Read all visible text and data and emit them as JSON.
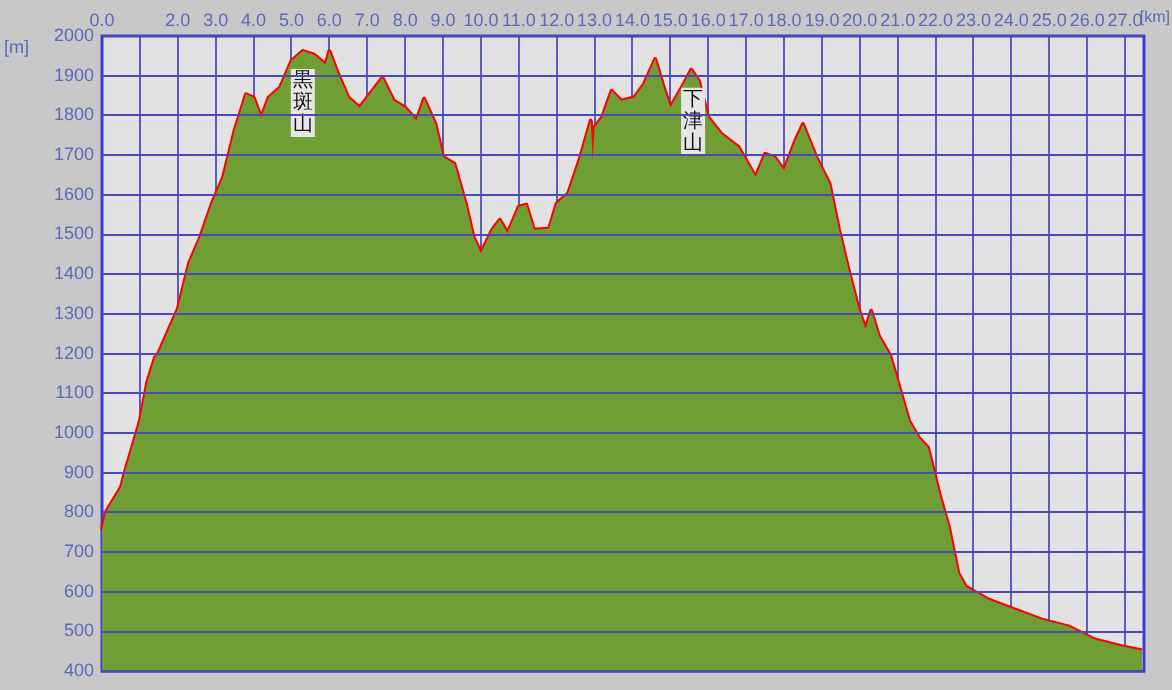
{
  "chart_data": {
    "type": "area",
    "xlabel": "[km]",
    "ylabel": "[m]",
    "xlim": [
      0,
      27.5
    ],
    "ylim": [
      400,
      2000
    ],
    "xticks": [
      {
        "value": 0,
        "label": "0.0"
      },
      {
        "value": 1,
        "label": null
      },
      {
        "value": 2,
        "label": "2.0"
      },
      {
        "value": 3,
        "label": "3.0"
      },
      {
        "value": 4,
        "label": "4.0"
      },
      {
        "value": 5,
        "label": "5.0"
      },
      {
        "value": 6,
        "label": "6.0"
      },
      {
        "value": 7,
        "label": "7.0"
      },
      {
        "value": 8,
        "label": "8.0"
      },
      {
        "value": 9,
        "label": "9.0"
      },
      {
        "value": 10,
        "label": "10.0"
      },
      {
        "value": 11,
        "label": "11.0"
      },
      {
        "value": 12,
        "label": "12.0"
      },
      {
        "value": 13,
        "label": "13.0"
      },
      {
        "value": 14,
        "label": "14.0"
      },
      {
        "value": 15,
        "label": "15.0"
      },
      {
        "value": 16,
        "label": "16.0"
      },
      {
        "value": 17,
        "label": "17.0"
      },
      {
        "value": 18,
        "label": "18.0"
      },
      {
        "value": 19,
        "label": "19.0"
      },
      {
        "value": 20,
        "label": "20.0"
      },
      {
        "value": 21,
        "label": "21.0"
      },
      {
        "value": 22,
        "label": "22.0"
      },
      {
        "value": 23,
        "label": "23.0"
      },
      {
        "value": 24,
        "label": "24.0"
      },
      {
        "value": 25,
        "label": "25.0"
      },
      {
        "value": 26,
        "label": "26.0"
      },
      {
        "value": 27,
        "label": "27.0"
      }
    ],
    "yticks": [
      400,
      500,
      600,
      700,
      800,
      900,
      1000,
      1100,
      1200,
      1300,
      1400,
      1500,
      1600,
      1700,
      1800,
      1900,
      2000
    ],
    "grid": true,
    "legend": false,
    "series": [
      {
        "color": "#6e9e34",
        "x": [
          0,
          0.1,
          0.5,
          0.6,
          1.0,
          1.2,
          1.4,
          1.5,
          2.0,
          2.3,
          2.6,
          2.9,
          3.2,
          3.5,
          3.8,
          4.0,
          4.2,
          4.4,
          4.7,
          5.0,
          5.3,
          5.6,
          5.9,
          6.0,
          6.2,
          6.5,
          6.8,
          7.0,
          7.4,
          7.7,
          8.0,
          8.3,
          8.5,
          8.8,
          9.0,
          9.3,
          9.6,
          9.8,
          10.0,
          10.3,
          10.5,
          10.7,
          11.0,
          11.2,
          11.4,
          11.8,
          12.0,
          12.3,
          12.6,
          12.9,
          12.95,
          13.0,
          13.2,
          13.45,
          13.7,
          14.05,
          14.3,
          14.6,
          14.8,
          15.0,
          15.3,
          15.55,
          15.75,
          16.0,
          16.35,
          16.8,
          17.05,
          17.25,
          17.5,
          17.75,
          18.0,
          18.3,
          18.5,
          18.85,
          19.2,
          19.45,
          19.7,
          19.97,
          20.15,
          20.3,
          20.5,
          20.8,
          21.05,
          21.3,
          21.56,
          21.8,
          22.1,
          22.35,
          22.6,
          22.8,
          23.4,
          24.1,
          24.8,
          25.5,
          26.2,
          26.9,
          27.45
        ],
        "values": [
          755,
          800,
          863,
          900,
          1030,
          1130,
          1190,
          1203,
          1312,
          1428,
          1495,
          1578,
          1645,
          1762,
          1853,
          1845,
          1795,
          1845,
          1870,
          1937,
          1962,
          1953,
          1928,
          1962,
          1912,
          1845,
          1820,
          1845,
          1895,
          1837,
          1820,
          1787,
          1842,
          1778,
          1695,
          1678,
          1578,
          1495,
          1453,
          1512,
          1537,
          1503,
          1570,
          1575,
          1512,
          1515,
          1578,
          1603,
          1687,
          1787,
          1687,
          1770,
          1795,
          1862,
          1837,
          1845,
          1878,
          1942,
          1878,
          1820,
          1870,
          1915,
          1887,
          1795,
          1753,
          1720,
          1678,
          1645,
          1703,
          1695,
          1662,
          1737,
          1778,
          1695,
          1628,
          1512,
          1412,
          1312,
          1262,
          1308,
          1245,
          1195,
          1113,
          1030,
          988,
          963,
          847,
          763,
          647,
          613,
          580,
          555,
          530,
          513,
          480,
          463,
          452
        ]
      },
      {
        "type": "line",
        "color": "#ff0000",
        "x": [
          0,
          0.1,
          0.5,
          0.6,
          1.0,
          1.2,
          1.4,
          1.5,
          2.0,
          2.3,
          2.6,
          2.9,
          3.2,
          3.5,
          3.8,
          4.0,
          4.2,
          4.4,
          4.7,
          5.0,
          5.3,
          5.6,
          5.9,
          6.0,
          6.2,
          6.5,
          6.8,
          7.0,
          7.4,
          7.7,
          8.0,
          8.3,
          8.5,
          8.8,
          9.0,
          9.3,
          9.6,
          9.8,
          10.0,
          10.3,
          10.5,
          10.7,
          11.0,
          11.2,
          11.4,
          11.8,
          12.0,
          12.3,
          12.6,
          12.9,
          12.95,
          13.0,
          13.2,
          13.45,
          13.7,
          14.05,
          14.3,
          14.6,
          14.8,
          15.0,
          15.3,
          15.55,
          15.75,
          16.0,
          16.35,
          16.8,
          17.05,
          17.25,
          17.5,
          17.75,
          18.0,
          18.3,
          18.5,
          18.85,
          19.2,
          19.45,
          19.7,
          19.97,
          20.15,
          20.3,
          20.5,
          20.8,
          21.05,
          21.3,
          21.56,
          21.8,
          22.1,
          22.35,
          22.6,
          22.8,
          23.4,
          24.1,
          24.8,
          25.5,
          26.2,
          26.9,
          27.45
        ],
        "values": [
          755,
          800,
          863,
          900,
          1030,
          1130,
          1190,
          1203,
          1312,
          1428,
          1495,
          1578,
          1645,
          1762,
          1853,
          1845,
          1795,
          1845,
          1870,
          1937,
          1962,
          1953,
          1928,
          1962,
          1912,
          1845,
          1820,
          1845,
          1895,
          1837,
          1820,
          1787,
          1842,
          1778,
          1695,
          1678,
          1578,
          1495,
          1453,
          1512,
          1537,
          1503,
          1570,
          1575,
          1512,
          1515,
          1578,
          1603,
          1687,
          1787,
          1687,
          1770,
          1795,
          1862,
          1837,
          1845,
          1878,
          1942,
          1878,
          1820,
          1870,
          1915,
          1887,
          1795,
          1753,
          1720,
          1678,
          1645,
          1703,
          1695,
          1662,
          1737,
          1778,
          1695,
          1628,
          1512,
          1412,
          1312,
          1262,
          1308,
          1245,
          1195,
          1113,
          1030,
          988,
          963,
          847,
          763,
          647,
          613,
          580,
          555,
          530,
          513,
          480,
          463,
          452
        ]
      }
    ],
    "annotations": [
      {
        "text": "黒斑山",
        "x": 5.3,
        "y": 1962
      },
      {
        "text": "下津山",
        "x": 15.6,
        "y": 1915
      }
    ]
  }
}
